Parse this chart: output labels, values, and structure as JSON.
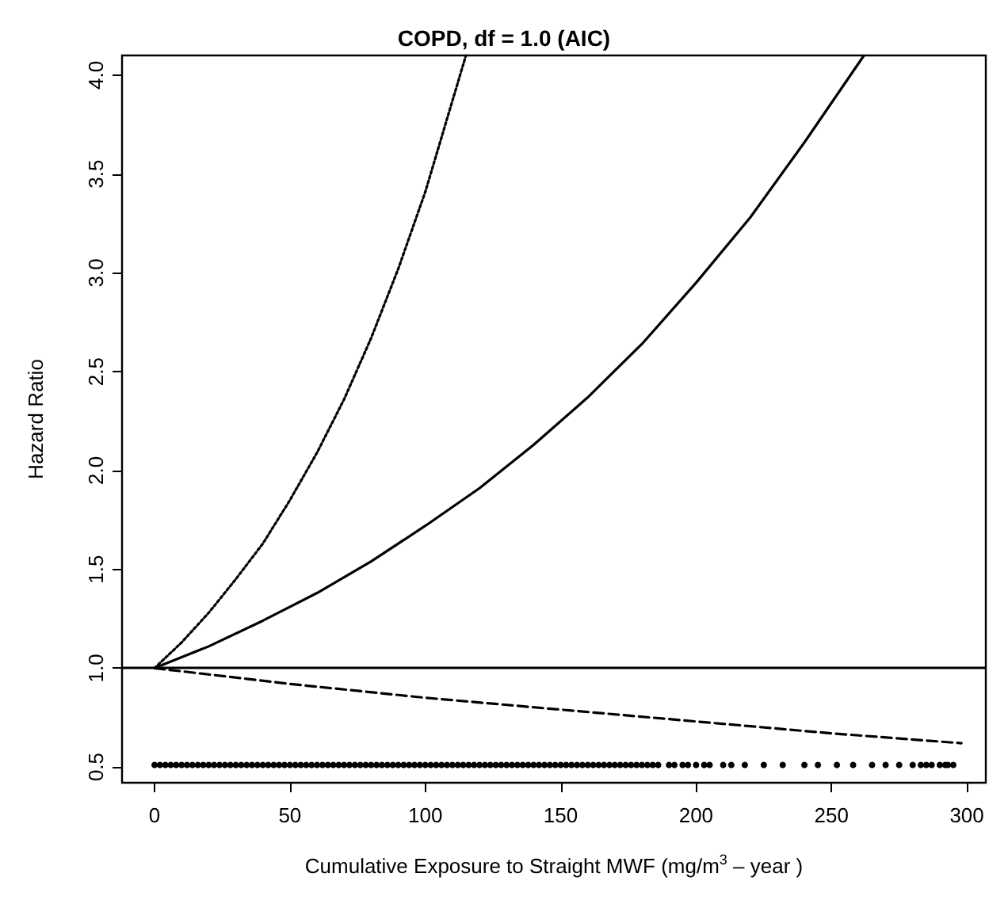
{
  "chart_data": {
    "type": "line",
    "title": "COPD, df = 1.0 (AIC)",
    "xlabel": "Cumulative Exposure to Straight MWF (mg/m$^{3}$ – year )",
    "ylabel": "Hazard Ratio",
    "xlim": [
      -12,
      307
    ],
    "ylim": [
      0.42,
      4.1
    ],
    "xticks": [
      0,
      50,
      100,
      150,
      200,
      250,
      300
    ],
    "yticks": [
      0.5,
      {
        "value": 1,
        "label": "1.0"
      },
      1.5,
      {
        "value": 2,
        "label": "2.0"
      },
      2.5,
      {
        "value": 3,
        "label": "3.0"
      },
      3.5,
      {
        "value": 4,
        "label": "4.0"
      }
    ],
    "grid": false,
    "ref_lines": [
      {
        "axis": "y",
        "value": 1,
        "label": null,
        "color": "#000000",
        "line_style": "solid"
      }
    ],
    "series": [
      {
        "color": "#000000",
        "line_style": "solid",
        "x": [
          0,
          20,
          40,
          60,
          80,
          100,
          120,
          140,
          160,
          180,
          200,
          220,
          240,
          262
        ],
        "values": [
          1,
          1.11,
          1.24,
          1.38,
          1.54,
          1.72,
          1.91,
          2.13,
          2.37,
          2.64,
          2.95,
          3.28,
          3.66,
          4.1
        ]
      },
      {
        "color": "#000000",
        "line_style": "dotted",
        "x": [
          0,
          10,
          20,
          30,
          40,
          50,
          60,
          70,
          80,
          90,
          100,
          115
        ],
        "values": [
          1,
          1.13,
          1.28,
          1.45,
          1.63,
          1.85,
          2.09,
          2.36,
          2.67,
          3.02,
          3.41,
          4.1
        ]
      },
      {
        "color": "#000000",
        "line_style": "dashed",
        "x": [
          0,
          50,
          100,
          150,
          200,
          250,
          298
        ],
        "values": [
          1,
          0.92,
          0.85,
          0.79,
          0.73,
          0.67,
          0.62
        ]
      },
      {
        "type": "scatter",
        "color": "#000000",
        "x": [
          0,
          2,
          4,
          6,
          8,
          10,
          12,
          14,
          16,
          18,
          20,
          22,
          24,
          26,
          28,
          30,
          32,
          34,
          36,
          38,
          40,
          42,
          44,
          46,
          48,
          50,
          52,
          54,
          56,
          58,
          60,
          62,
          64,
          66,
          68,
          70,
          72,
          74,
          76,
          78,
          80,
          82,
          84,
          86,
          88,
          90,
          92,
          94,
          96,
          98,
          100,
          102,
          104,
          106,
          108,
          110,
          112,
          114,
          116,
          118,
          120,
          122,
          124,
          126,
          128,
          130,
          132,
          134,
          136,
          138,
          140,
          142,
          144,
          146,
          148,
          150,
          152,
          154,
          156,
          158,
          160,
          162,
          164,
          166,
          168,
          170,
          172,
          174,
          176,
          178,
          180,
          182,
          184,
          186,
          190,
          192,
          195,
          197,
          200,
          203,
          205,
          210,
          213,
          218,
          225,
          232,
          240,
          245,
          252,
          258,
          265,
          270,
          275,
          280,
          283,
          285,
          287,
          290,
          292,
          293,
          295
        ],
        "values": [
          0.51,
          0.51,
          0.51,
          0.51,
          0.51,
          0.51,
          0.51,
          0.51,
          0.51,
          0.51,
          0.51,
          0.51,
          0.51,
          0.51,
          0.51,
          0.51,
          0.51,
          0.51,
          0.51,
          0.51,
          0.51,
          0.51,
          0.51,
          0.51,
          0.51,
          0.51,
          0.51,
          0.51,
          0.51,
          0.51,
          0.51,
          0.51,
          0.51,
          0.51,
          0.51,
          0.51,
          0.51,
          0.51,
          0.51,
          0.51,
          0.51,
          0.51,
          0.51,
          0.51,
          0.51,
          0.51,
          0.51,
          0.51,
          0.51,
          0.51,
          0.51,
          0.51,
          0.51,
          0.51,
          0.51,
          0.51,
          0.51,
          0.51,
          0.51,
          0.51,
          0.51,
          0.51,
          0.51,
          0.51,
          0.51,
          0.51,
          0.51,
          0.51,
          0.51,
          0.51,
          0.51,
          0.51,
          0.51,
          0.51,
          0.51,
          0.51,
          0.51,
          0.51,
          0.51,
          0.51,
          0.51,
          0.51,
          0.51,
          0.51,
          0.51,
          0.51,
          0.51,
          0.51,
          0.51,
          0.51,
          0.51,
          0.51,
          0.51,
          0.51,
          0.51,
          0.51,
          0.51,
          0.51,
          0.51,
          0.51,
          0.51,
          0.51,
          0.51,
          0.51,
          0.51,
          0.51,
          0.51,
          0.51,
          0.51,
          0.51,
          0.51,
          0.51,
          0.51,
          0.51,
          0.51,
          0.51,
          0.51,
          0.51,
          0.51,
          0.51,
          0.51
        ]
      }
    ]
  }
}
